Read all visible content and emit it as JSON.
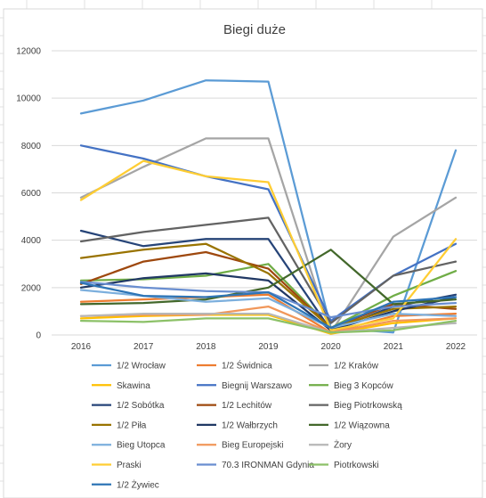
{
  "chart_data": {
    "type": "line",
    "title": "Biegi duże",
    "xlabel": "",
    "ylabel": "",
    "categories": [
      "2016",
      "2017",
      "2018",
      "2019",
      "2020",
      "2021",
      "2022"
    ],
    "ylim": [
      0,
      12000
    ],
    "yticks": [
      0,
      2000,
      4000,
      6000,
      8000,
      10000,
      12000
    ],
    "grid": "horizontal",
    "legend_position": "bottom",
    "series": [
      {
        "name": "1/2 Wrocław",
        "color": "#5b9bd5",
        "values": [
          9350,
          9900,
          10750,
          10700,
          300,
          100,
          7800
        ]
      },
      {
        "name": "1/2 Świdnica",
        "color": "#ed7d31",
        "values": [
          1400,
          1500,
          1600,
          1700,
          100,
          800,
          900
        ]
      },
      {
        "name": "1/2 Kraków",
        "color": "#a5a5a5",
        "values": [
          5800,
          7100,
          8300,
          8300,
          100,
          4150,
          5800
        ]
      },
      {
        "name": "Skawina",
        "color": "#ffc000",
        "values": [
          700,
          800,
          850,
          850,
          50,
          500,
          700
        ]
      },
      {
        "name": "Biegnij Warszawo",
        "color": "#4472c4",
        "values": [
          8000,
          7450,
          6700,
          6150,
          600,
          2500,
          3850
        ]
      },
      {
        "name": "Bieg 3 Kopców",
        "color": "#70ad47",
        "values": [
          2300,
          2350,
          2500,
          3000,
          300,
          1650,
          2700
        ]
      },
      {
        "name": "1/2 Sobótka",
        "color": "#264478",
        "values": [
          4400,
          3750,
          4050,
          4050,
          200,
          1200,
          1700
        ]
      },
      {
        "name": "1/2 Lechitów",
        "color": "#9e480e",
        "values": [
          2150,
          3100,
          3500,
          2800,
          300,
          1300,
          1100
        ]
      },
      {
        "name": "Bieg Piotrkowską",
        "color": "#636363",
        "values": [
          3950,
          4350,
          4650,
          4950,
          500,
          2500,
          3100
        ]
      },
      {
        "name": "1/2 Piła",
        "color": "#997300",
        "values": [
          3250,
          3600,
          3850,
          2600,
          300,
          1100,
          1200
        ]
      },
      {
        "name": "1/2 Wałbrzych",
        "color": "#203864",
        "values": [
          2000,
          2400,
          2600,
          2300,
          200,
          1000,
          1600
        ]
      },
      {
        "name": "1/2 Wiązowna",
        "color": "#43682b",
        "values": [
          1300,
          1350,
          1500,
          2000,
          3600,
          1300,
          1500
        ]
      },
      {
        "name": "Bieg Utopca",
        "color": "#7cafdd",
        "values": [
          1900,
          1650,
          1400,
          1550,
          300,
          900,
          800
        ]
      },
      {
        "name": "Bieg Europejski",
        "color": "#f1975a",
        "values": [
          800,
          850,
          850,
          1200,
          100,
          600,
          700
        ]
      },
      {
        "name": "Żory",
        "color": "#b7b7b7",
        "values": [
          800,
          900,
          900,
          900,
          100,
          300,
          500
        ]
      },
      {
        "name": "Praski",
        "color": "#ffcd33",
        "values": [
          5700,
          7350,
          6700,
          6450,
          200,
          700,
          4050
        ]
      },
      {
        "name": "70.3 IRONMAN Gdynia",
        "color": "#698ed0",
        "values": [
          2250,
          2000,
          1850,
          1800,
          750,
          1200,
          1350
        ]
      },
      {
        "name": "Piotrkowski",
        "color": "#8cc168",
        "values": [
          600,
          550,
          700,
          700,
          100,
          200,
          600
        ]
      },
      {
        "name": "1/2 Żywiec",
        "color": "#2e75b6",
        "values": [
          2200,
          1650,
          1600,
          1800,
          300,
          1400,
          1600
        ]
      }
    ]
  }
}
